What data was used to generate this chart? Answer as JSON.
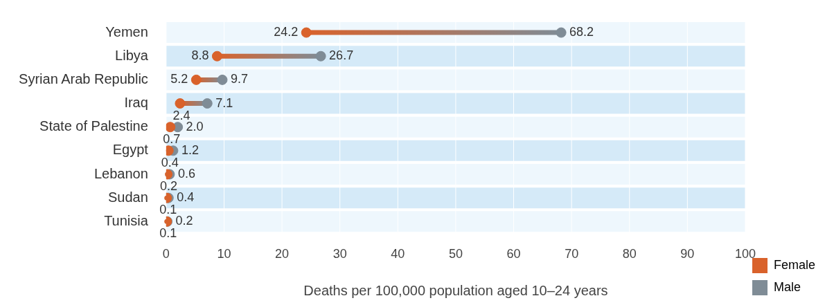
{
  "chart_data": {
    "type": "scatter",
    "orientation": "horizontal",
    "xlabel": "Deaths per 100,000 population aged 10–24 years",
    "categories": [
      "Yemen",
      "Libya",
      "Syrian Arab Republic",
      "Iraq",
      "State of Palestine",
      "Egypt",
      "Lebanon",
      "Sudan",
      "Tunisia"
    ],
    "series": [
      {
        "name": "Female",
        "color": "#d9622b",
        "values": [
          24.2,
          8.8,
          5.2,
          2.4,
          0.7,
          0.4,
          0.2,
          0.1,
          0.1
        ],
        "value_labels": [
          "24.2",
          "8.8",
          "5.2",
          "2.4",
          "0.7",
          "0.4",
          "0.2",
          "0.1",
          "0.1"
        ]
      },
      {
        "name": "Male",
        "color": "#7f8c96",
        "values": [
          68.2,
          26.7,
          9.7,
          7.1,
          2.0,
          1.2,
          0.6,
          0.4,
          0.2
        ],
        "value_labels": [
          "68.2",
          "26.7",
          "9.7",
          "7.1",
          "2.0",
          "1.2",
          "0.6",
          "0.4",
          "0.2"
        ]
      }
    ],
    "xlim": [
      0,
      100
    ],
    "xticks": [
      0,
      10,
      20,
      30,
      40,
      50,
      60,
      70,
      80,
      90,
      100
    ],
    "bands": [
      {
        "axis": "y",
        "from": "Yemen",
        "to": "Yemen",
        "color": "#eef7fd"
      },
      {
        "axis": "y",
        "from": "Libya",
        "to": "Libya",
        "color": "#d5eaf8"
      },
      {
        "axis": "y",
        "from": "Syrian Arab Republic",
        "to": "Syrian Arab Republic",
        "color": "#eef7fd"
      },
      {
        "axis": "y",
        "from": "Iraq",
        "to": "Iraq",
        "color": "#d5eaf8"
      },
      {
        "axis": "y",
        "from": "State of Palestine",
        "to": "State of Palestine",
        "color": "#eef7fd"
      },
      {
        "axis": "y",
        "from": "Egypt",
        "to": "Egypt",
        "color": "#d5eaf8"
      },
      {
        "axis": "y",
        "from": "Lebanon",
        "to": "Lebanon",
        "color": "#eef7fd"
      },
      {
        "axis": "y",
        "from": "Sudan",
        "to": "Sudan",
        "color": "#d5eaf8"
      },
      {
        "axis": "y",
        "from": "Tunisia",
        "to": "Tunisia",
        "color": "#eef7fd"
      }
    ],
    "grid": "x",
    "legend": "bottom right",
    "marker": "circle"
  }
}
